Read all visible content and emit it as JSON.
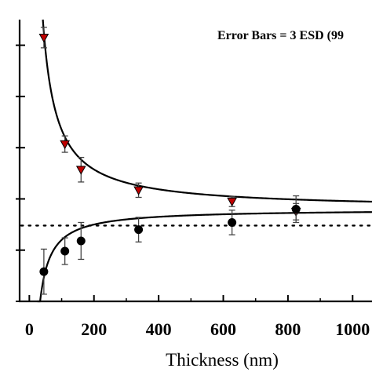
{
  "chart_data": {
    "type": "scatter",
    "title": "",
    "xlabel": "Thickness (nm)",
    "ylabel": "",
    "xlim": [
      -30,
      1060
    ],
    "ylim": [
      0,
      5.5
    ],
    "x_ticks": [
      0,
      200,
      400,
      600,
      800,
      1000
    ],
    "x_tick_labels": [
      "0",
      "200",
      "400",
      "600",
      "800",
      "1000"
    ],
    "y_ticks": [
      0,
      1,
      2,
      3,
      4,
      5
    ],
    "annotation": "Error Bars = 3 ESD (99",
    "reference_line": {
      "y": 1.48,
      "style": "dotted"
    },
    "asymptote": 1.8,
    "grid": false,
    "series": [
      {
        "marker": "triangle-down",
        "color": "#c00000",
        "points": [
          {
            "x": 45,
            "y": 5.15,
            "err": 0.2
          },
          {
            "x": 110,
            "y": 3.07,
            "err": 0.16
          },
          {
            "x": 160,
            "y": 2.57,
            "err": 0.24
          },
          {
            "x": 338,
            "y": 2.17,
            "err": 0.14
          },
          {
            "x": 627,
            "y": 1.95,
            "err": 0.1
          },
          {
            "x": 825,
            "y": 1.75,
            "err": 0.16
          }
        ],
        "fit": {
          "a": 1.8,
          "b": 155
        }
      },
      {
        "marker": "circle",
        "color": "#000000",
        "points": [
          {
            "x": 45,
            "y": 0.58,
            "err": 0.44
          },
          {
            "x": 110,
            "y": 0.98,
            "err": 0.26
          },
          {
            "x": 160,
            "y": 1.18,
            "err": 0.36
          },
          {
            "x": 338,
            "y": 1.4,
            "err": 0.24
          },
          {
            "x": 627,
            "y": 1.54,
            "err": 0.24
          },
          {
            "x": 825,
            "y": 1.8,
            "err": 0.26
          }
        ],
        "fit": {
          "a": 1.8,
          "b": -60
        }
      }
    ]
  }
}
